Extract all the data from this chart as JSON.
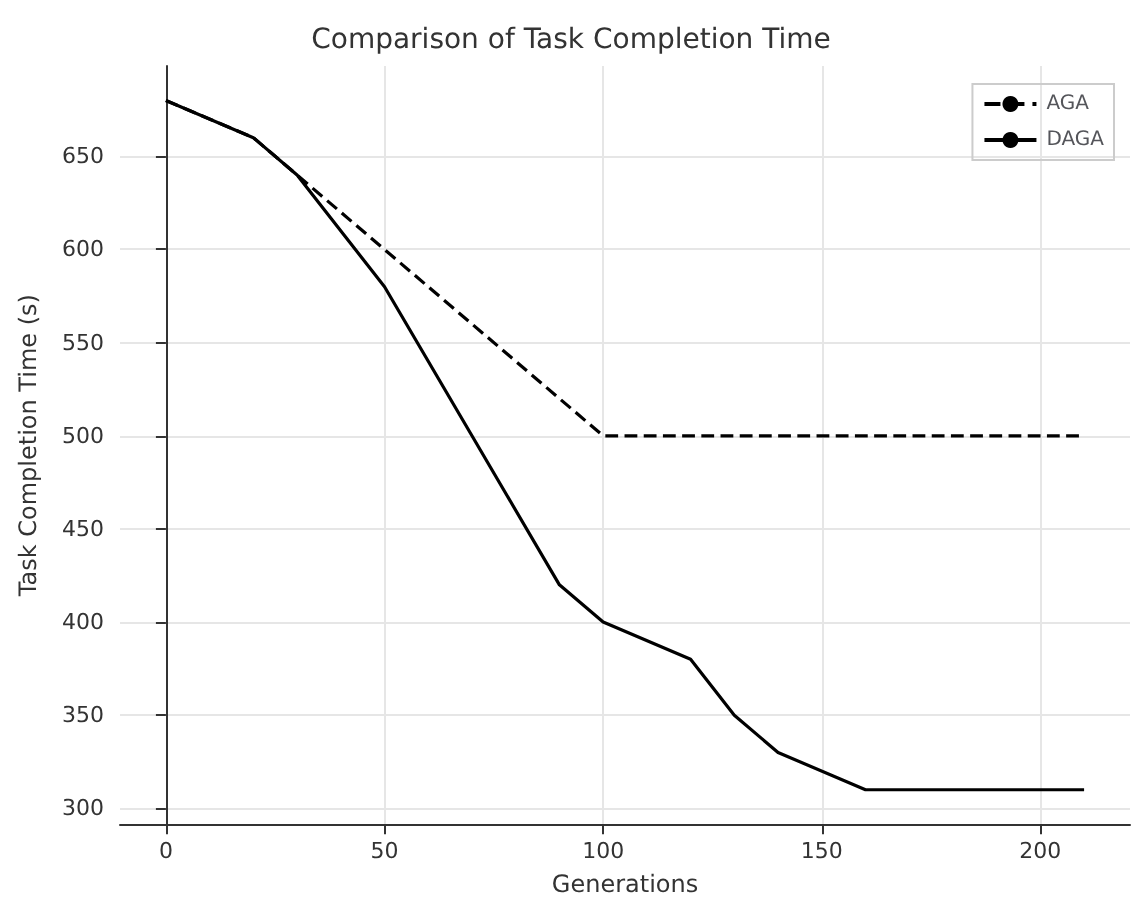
{
  "chart_data": {
    "type": "line",
    "title": "Comparison of Task Completion Time",
    "xlabel": "Generations",
    "ylabel": "Task Completion Time (s)",
    "xlim": [
      -10.5,
      220.5
    ],
    "xticks": [
      0,
      50,
      100,
      150,
      200
    ],
    "ylim": [
      291.5,
      698.5
    ],
    "yticks": [
      300,
      350,
      400,
      450,
      500,
      550,
      600,
      650
    ],
    "grid": true,
    "legend": "top right",
    "marker": "none",
    "series": [
      {
        "name": "AGA",
        "color": "#000000",
        "line_style": "dashed",
        "x": [
          0,
          20,
          30,
          100,
          210
        ],
        "values": [
          680,
          660,
          640,
          500,
          500
        ]
      },
      {
        "name": "DAGA",
        "color": "#000000",
        "line_style": "solid",
        "x": [
          0,
          20,
          30,
          50,
          70,
          90,
          100,
          120,
          130,
          140,
          160,
          210
        ],
        "values": [
          680,
          660,
          640,
          580,
          500,
          420,
          400,
          380,
          350,
          330,
          310,
          310
        ]
      }
    ]
  }
}
